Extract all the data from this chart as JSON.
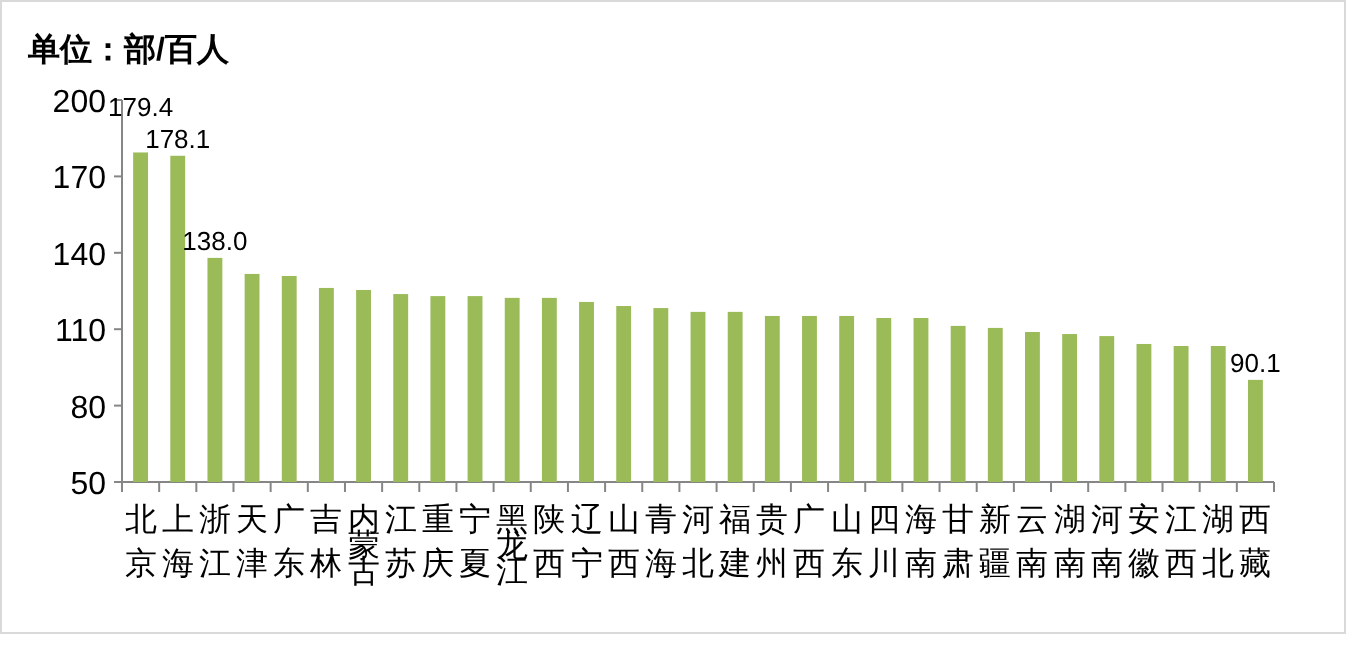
{
  "chart_data": {
    "type": "bar",
    "title": "单位：部/百人",
    "categories": [
      "北京",
      "上海",
      "浙江",
      "天津",
      "广东",
      "吉林",
      "内蒙古",
      "江苏",
      "重庆",
      "宁夏",
      "黑龙江",
      "陕西",
      "辽宁",
      "山西",
      "青海",
      "河北",
      "福建",
      "贵州",
      "广西",
      "山东",
      "四川",
      "海南",
      "甘肃",
      "新疆",
      "云南",
      "湖南",
      "河南",
      "安徽",
      "江西",
      "湖北",
      "西藏"
    ],
    "values": [
      179.4,
      178.1,
      138.0,
      131.7,
      130.9,
      126.2,
      125.4,
      123.8,
      123.0,
      123.0,
      122.3,
      122.3,
      120.7,
      119.1,
      118.3,
      116.8,
      116.8,
      115.2,
      115.2,
      115.2,
      114.4,
      114.4,
      111.3,
      110.5,
      108.9,
      108.1,
      107.3,
      104.2,
      103.4,
      103.4,
      90.1
    ],
    "value_labels": [
      "179.4",
      "178.1",
      "138.0",
      null,
      null,
      null,
      null,
      null,
      null,
      null,
      null,
      null,
      null,
      null,
      null,
      null,
      null,
      null,
      null,
      null,
      null,
      null,
      null,
      null,
      null,
      null,
      null,
      null,
      null,
      null,
      "90.1"
    ],
    "color": "#9bbb59",
    "ylim": [
      50,
      200
    ],
    "yticks": [
      50,
      80,
      110,
      140,
      170,
      200
    ],
    "grid": false
  }
}
